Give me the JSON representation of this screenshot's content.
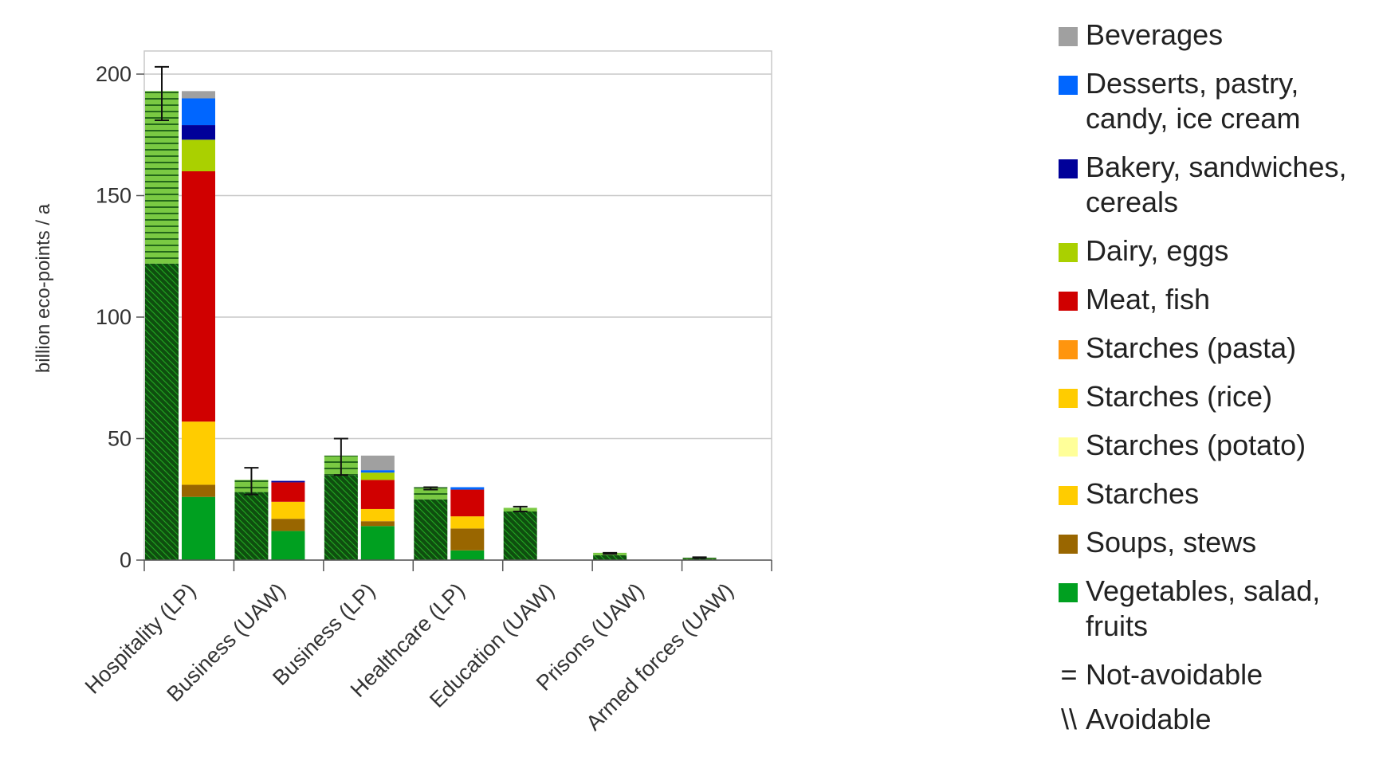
{
  "chart_data": {
    "type": "bar",
    "stacked": true,
    "ylabel": "billion eco-points / a",
    "ylim": [
      0,
      200
    ],
    "yticks": [
      0,
      50,
      100,
      150,
      200
    ],
    "grid": true,
    "legend_position": "right",
    "categories": [
      "Hospitality (LP)",
      "Business (UAW)",
      "Business (LP)",
      "Healthcare (LP)",
      "Education (UAW)",
      "Prisons (UAW)",
      "Armed forces (UAW)"
    ],
    "hatched_bars": [
      {
        "category": "Hospitality (LP)",
        "avoidable": 122,
        "not_avoidable": 71,
        "error_low": 181,
        "error_high": 203
      },
      {
        "category": "Business (UAW)",
        "avoidable": 28,
        "not_avoidable": 5,
        "error_low": 27,
        "error_high": 38
      },
      {
        "category": "Business (LP)",
        "avoidable": 35,
        "not_avoidable": 8,
        "error_low": 35,
        "error_high": 50
      },
      {
        "category": "Healthcare (LP)",
        "avoidable": 25,
        "not_avoidable": 5,
        "error_low": 29,
        "error_high": 30
      },
      {
        "category": "Education (UAW)",
        "avoidable": 20,
        "not_avoidable": 1.5,
        "error_low": 20,
        "error_high": 22
      },
      {
        "category": "Prisons (UAW)",
        "avoidable": 2,
        "not_avoidable": 1,
        "error_low": 2.5,
        "error_high": 3
      },
      {
        "category": "Armed forces (UAW)",
        "avoidable": 0.5,
        "not_avoidable": 0.5,
        "error_low": 0.8,
        "error_high": 1.2
      }
    ],
    "series": [
      {
        "name": "Vegetables, salad, fruits",
        "color": "#00a020",
        "values": [
          26,
          12,
          14,
          4,
          0,
          0,
          0
        ]
      },
      {
        "name": "Soups, stews",
        "color": "#996600",
        "values": [
          5,
          5,
          2,
          9,
          0,
          0,
          0
        ]
      },
      {
        "name": "Starches",
        "color": "#ffcc00",
        "values": [
          26,
          7,
          5,
          5,
          0,
          0,
          0
        ]
      },
      {
        "name": "Starches (potato)",
        "color": "#ffff99",
        "values": [
          0,
          0,
          0,
          0,
          0,
          0,
          0
        ]
      },
      {
        "name": "Starches (rice)",
        "color": "#ffcc00",
        "values": [
          0,
          0,
          0,
          0,
          0,
          0,
          0
        ]
      },
      {
        "name": "Starches (pasta)",
        "color": "#ff950e",
        "values": [
          0,
          0,
          0,
          0,
          0,
          0,
          0
        ]
      },
      {
        "name": "Meat, fish",
        "color": "#d00000",
        "values": [
          103,
          8,
          12,
          11,
          0,
          0,
          0
        ]
      },
      {
        "name": "Dairy, eggs",
        "color": "#aad000",
        "values": [
          13,
          0,
          3,
          0,
          0,
          0,
          0
        ]
      },
      {
        "name": "Bakery, sandwiches, cereals",
        "color": "#000099",
        "values": [
          6,
          0.6,
          0,
          0,
          0,
          0,
          0
        ]
      },
      {
        "name": "Desserts, pastry, candy, ice cream",
        "color": "#0066ff",
        "values": [
          11,
          0,
          1,
          1,
          0,
          0,
          0
        ]
      },
      {
        "name": "Beverages",
        "color": "#a0a0a0",
        "values": [
          3,
          0,
          6,
          0,
          0,
          0,
          0
        ]
      }
    ],
    "pattern_legend": [
      {
        "name": "Not-avoidable",
        "glyph": "="
      },
      {
        "name": "Avoidable",
        "glyph": "\\\\"
      }
    ],
    "colors": {
      "hatch_green": "#7ac943",
      "hatch_dark": "#0f4f0f",
      "grid": "#c8c8c8",
      "axis": "#555555"
    }
  },
  "legend": {
    "items": [
      {
        "label": "Beverages",
        "color": "#a0a0a0"
      },
      {
        "label": "Desserts, pastry, candy, ice cream",
        "color": "#0066ff"
      },
      {
        "label": "Bakery, sandwiches, cereals",
        "color": "#000099"
      },
      {
        "label": "Dairy, eggs",
        "color": "#aad000"
      },
      {
        "label": "Meat, fish",
        "color": "#d00000"
      },
      {
        "label": "Starches (pasta)",
        "color": "#ff950e"
      },
      {
        "label": "Starches (rice)",
        "color": "#ffcc00"
      },
      {
        "label": "Starches (potato)",
        "color": "#ffff99"
      },
      {
        "label": "Starches",
        "color": "#ffcc00"
      },
      {
        "label": "Soups, stews",
        "color": "#996600"
      },
      {
        "label": "Vegetables, salad, fruits",
        "color": "#00a020"
      },
      {
        "label": "Not-avoidable",
        "glyph": "="
      },
      {
        "label": "Avoidable",
        "glyph": "\\\\"
      }
    ]
  }
}
